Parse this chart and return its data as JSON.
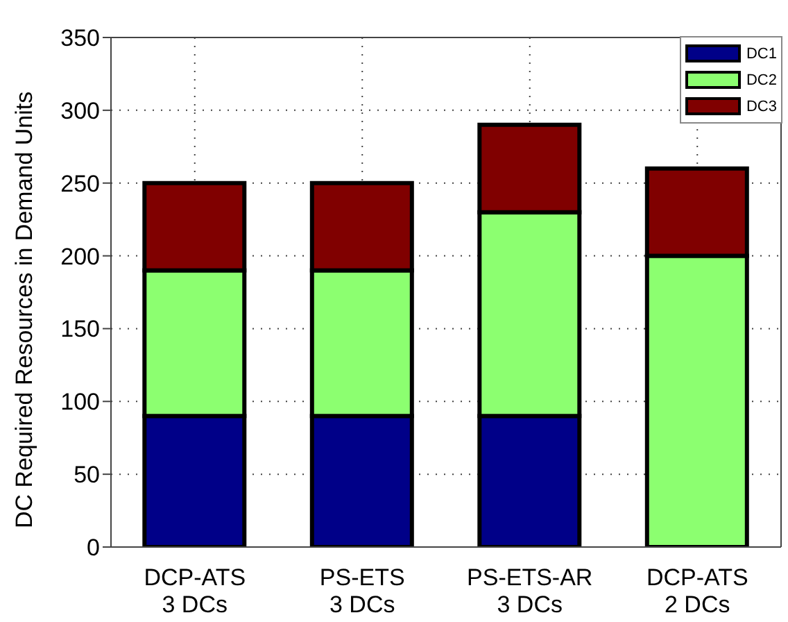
{
  "chart_data": {
    "type": "bar",
    "ylabel": "DC Required Resources in Demand Units",
    "categories": [
      "DCP-ATS\n3 DCs",
      "PS-ETS\n3 DCs",
      "PS-ETS-AR\n3 DCs",
      "DCP-ATS\n2 DCs"
    ],
    "stacked": true,
    "series": [
      {
        "name": "DC1",
        "color": "#000088",
        "values": [
          90,
          90,
          90,
          0
        ]
      },
      {
        "name": "DC2",
        "color": "#8cff70",
        "values": [
          100,
          100,
          140,
          200
        ]
      },
      {
        "name": "DC3",
        "color": "#800000",
        "values": [
          60,
          60,
          60,
          60
        ]
      }
    ],
    "ylim": [
      0,
      350
    ],
    "yticks": [
      0,
      50,
      100,
      150,
      200,
      250,
      300,
      350
    ],
    "grid": true,
    "legend": "top right"
  }
}
